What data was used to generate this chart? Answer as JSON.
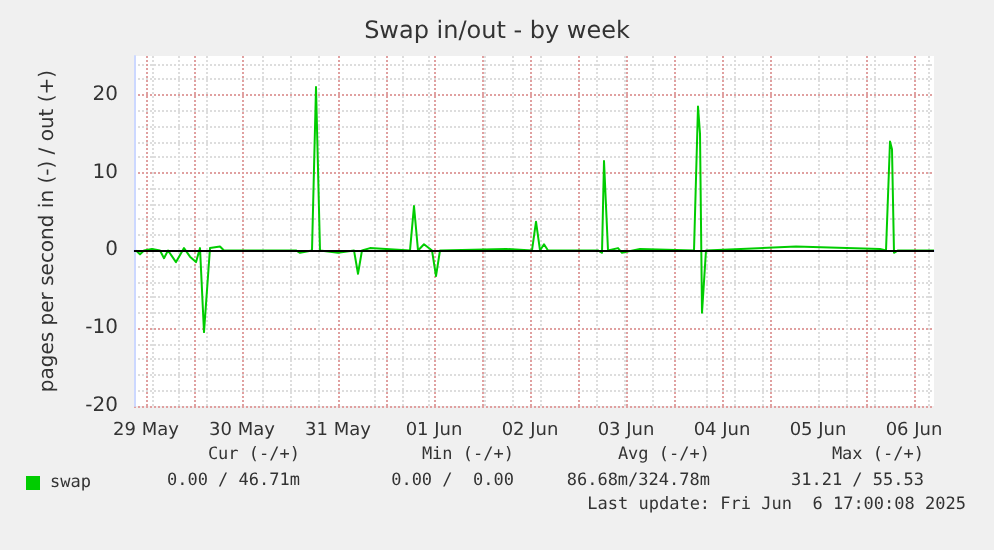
{
  "chart_data": {
    "type": "line",
    "title": "Swap in/out - by week",
    "ylabel": "pages per second in (-) / out (+)",
    "xlim": [
      "2025-05-29T09:00",
      "2025-06-06T17:00"
    ],
    "xticks": [
      {
        "value": "2025-05-29T12:00",
        "label": "29 May"
      },
      {
        "value": "2025-05-30T00:00",
        "label": null
      },
      {
        "value": "2025-05-30T12:00",
        "label": "30 May"
      },
      {
        "value": "2025-05-31T00:00",
        "label": null
      },
      {
        "value": "2025-05-31T12:00",
        "label": "31 May"
      },
      {
        "value": "2025-06-01T00:00",
        "label": null
      },
      {
        "value": "2025-06-01T12:00",
        "label": "01 Jun"
      },
      {
        "value": "2025-06-02T00:00",
        "label": null
      },
      {
        "value": "2025-06-02T12:00",
        "label": "02 Jun"
      },
      {
        "value": "2025-06-03T00:00",
        "label": null
      },
      {
        "value": "2025-06-03T12:00",
        "label": "03 Jun"
      },
      {
        "value": "2025-06-04T00:00",
        "label": null
      },
      {
        "value": "2025-06-04T12:00",
        "label": "04 Jun"
      },
      {
        "value": "2025-06-05T00:00",
        "label": null
      },
      {
        "value": "2025-06-05T12:00",
        "label": "05 Jun"
      },
      {
        "value": "2025-06-06T00:00",
        "label": null
      },
      {
        "value": "2025-06-06T12:00",
        "label": "06 Jun"
      }
    ],
    "ylim": [
      -20,
      25
    ],
    "yticks": [
      -20,
      -10,
      0,
      10,
      20
    ],
    "grid": true,
    "legend": "bottom left",
    "marker": "none",
    "line_style": "solid",
    "ref_lines": [
      {
        "axis": "y",
        "value": 0,
        "color": "#000000"
      }
    ],
    "series": [
      {
        "name": "swap",
        "color": "#00cc00",
        "x": [
          "2025-05-29T09:30",
          "2025-05-29T10:30",
          "2025-05-29T11:30",
          "2025-05-29T13:30",
          "2025-05-29T15:30",
          "2025-05-29T16:30",
          "2025-05-29T17:30",
          "2025-05-29T19:30",
          "2025-05-29T21:30",
          "2025-05-29T23:00",
          "2025-05-30T00:30",
          "2025-05-30T01:30",
          "2025-05-30T02:30",
          "2025-05-30T04:00",
          "2025-05-30T06:30",
          "2025-05-30T07:30",
          "2025-05-31T01:30",
          "2025-05-31T02:30",
          "2025-05-31T05:30",
          "2025-05-31T06:30",
          "2025-05-31T07:30",
          "2025-05-31T12:00",
          "2025-05-31T16:00",
          "2025-05-31T17:00",
          "2025-05-31T18:00",
          "2025-05-31T20:00",
          "2025-06-01T06:00",
          "2025-06-01T07:00",
          "2025-06-01T08:00",
          "2025-06-01T09:30",
          "2025-06-01T11:30",
          "2025-06-01T12:30",
          "2025-06-01T13:30",
          "2025-06-02T06:00",
          "2025-06-02T12:30",
          "2025-06-02T13:30",
          "2025-06-02T14:30",
          "2025-06-02T15:30",
          "2025-06-02T16:30",
          "2025-06-03T05:00",
          "2025-06-03T06:00",
          "2025-06-03T06:30",
          "2025-06-03T07:30",
          "2025-06-03T10:00",
          "2025-06-03T11:00",
          "2025-06-03T15:30",
          "2025-06-04T05:00",
          "2025-06-04T06:00",
          "2025-06-04T06:30",
          "2025-06-04T07:00",
          "2025-06-04T08:00",
          "2025-06-05T06:30",
          "2025-06-06T03:30",
          "2025-06-06T05:00",
          "2025-06-06T06:00",
          "2025-06-06T06:30",
          "2025-06-06T07:00",
          "2025-06-06T08:00",
          "2025-06-06T17:00"
        ],
        "values": [
          0,
          -0.5,
          0,
          0.2,
          0,
          -1,
          0,
          -1.5,
          0.3,
          -0.8,
          -1.5,
          0.3,
          -10.5,
          0.3,
          0.5,
          0,
          0,
          -0.3,
          0,
          21,
          0,
          -0.3,
          0,
          -3,
          0,
          0.3,
          0,
          5.7,
          0,
          0.8,
          0,
          -3.3,
          0,
          0.2,
          0,
          3.7,
          0,
          0.8,
          0,
          0,
          -0.3,
          11.5,
          0,
          0.3,
          -0.3,
          0.2,
          0,
          18.5,
          15,
          -8,
          0,
          0.5,
          0.2,
          0,
          14,
          13,
          -0.3,
          0,
          0
        ]
      }
    ],
    "annotations": [
      "Cur (-/+)",
      "Min (-/+)",
      "Avg (-/+)",
      "Max (-/+)",
      "0.00 / 46.71m",
      "0.00 /  0.00",
      "86.68m/324.78m",
      "31.21 / 55.53",
      "Last update: Fri Jun  6 17:00:08 2025"
    ]
  }
}
